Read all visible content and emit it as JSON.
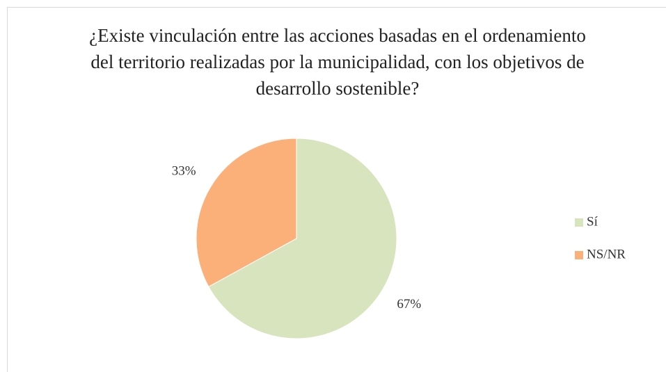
{
  "chart_data": {
    "type": "pie",
    "title": "¿Existe vinculación entre las acciones basadas en el ordenamiento del territorio realizadas por la municipalidad, con los objetivos de desarrollo sostenible?",
    "categories": [
      "Sí",
      "NS/NR"
    ],
    "values": [
      67,
      33
    ],
    "value_labels": [
      "67%",
      "33%"
    ],
    "colors": [
      "#d7e4bd",
      "#fbb07a"
    ],
    "legend": "right"
  }
}
